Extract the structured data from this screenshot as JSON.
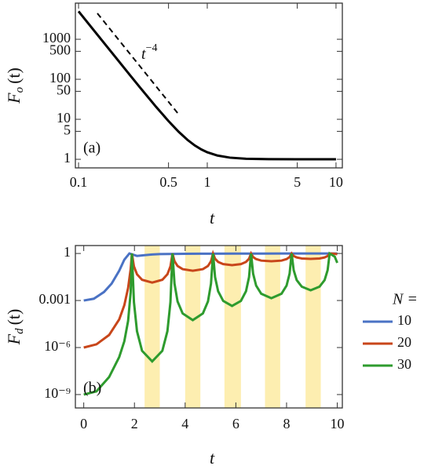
{
  "chart_data": [
    {
      "type": "line",
      "panel_label": "(a)",
      "xlabel": "t",
      "ylabel": {
        "text": "F",
        "sub": "o",
        "arg": "(t)"
      },
      "annotation": {
        "text": "t",
        "superscript": "−4"
      },
      "xscale": "log",
      "yscale": "log",
      "xlim": [
        0.0945,
        11.2
      ],
      "ylim": [
        0.61,
        8000
      ],
      "xticks": [
        0.1,
        0.5,
        1,
        5,
        10
      ],
      "yticks": [
        1,
        5,
        10,
        50,
        100,
        500,
        1000
      ],
      "series": [
        {
          "color": "#000000",
          "style": "solid",
          "x": [
            0.1,
            0.12,
            0.15,
            0.2,
            0.25,
            0.3,
            0.4,
            0.5,
            0.6,
            0.7,
            0.8,
            0.9,
            1,
            1.2,
            1.5,
            2,
            3,
            5,
            7,
            10
          ],
          "values": [
            5001,
            2412,
            989,
            314,
            129,
            62.7,
            20.5,
            9,
            4.86,
            3.08,
            2.22,
            1.76,
            1.5,
            1.24,
            1.1,
            1.03,
            1.01,
            1,
            1,
            1
          ]
        },
        {
          "color": "#000000",
          "style": "dashed",
          "x": [
            0.14,
            0.6
          ],
          "values": [
            4460,
            13.2
          ]
        }
      ]
    },
    {
      "type": "line",
      "panel_label": "(b)",
      "xlabel": "t",
      "ylabel": {
        "text": "F",
        "sub": "d",
        "arg": "(t)"
      },
      "xscale": "linear",
      "yscale": "log",
      "xlim": [
        -0.33,
        10.2
      ],
      "ylim": [
        1.4e-10,
        3.2
      ],
      "xticks": [
        0,
        2,
        4,
        6,
        8,
        10
      ],
      "yticks": [
        1,
        0.001,
        {
          "value": 1e-06,
          "label": "10⁻⁶"
        },
        {
          "value": 1e-09,
          "label": "10⁻⁹"
        }
      ],
      "bands": [
        [
          2.4,
          3.0
        ],
        [
          4.0,
          4.6
        ],
        [
          5.55,
          6.2
        ],
        [
          7.15,
          7.75
        ],
        [
          8.75,
          9.35
        ]
      ],
      "band_color": "#fdeeb0",
      "legend_title": "N =",
      "legend": "right",
      "series": [
        {
          "name": "10",
          "color": "#4a72c4",
          "x": [
            0,
            0.4,
            0.8,
            1.1,
            1.4,
            1.6,
            1.8,
            2.1,
            2.4,
            2.7,
            3.0,
            4,
            5,
            6,
            7,
            8,
            9,
            10
          ],
          "values": [
            0.001,
            0.0013,
            0.0035,
            0.012,
            0.08,
            0.4,
            1,
            0.7,
            0.78,
            0.86,
            0.92,
            0.96,
            0.97,
            0.98,
            0.98,
            0.99,
            0.99,
            0.99
          ]
        },
        {
          "name": "20",
          "color": "#c8461a",
          "x": [
            0,
            0.5,
            1.0,
            1.4,
            1.6,
            1.75,
            1.85,
            1.9,
            1.98,
            2.1,
            2.3,
            2.7,
            3.1,
            3.3,
            3.42,
            3.5,
            3.58,
            3.7,
            3.9,
            4.3,
            4.7,
            4.9,
            5.02,
            5.1,
            5.18,
            5.3,
            5.5,
            5.85,
            6.2,
            6.4,
            6.52,
            6.6,
            6.68,
            6.8,
            7.0,
            7.4,
            7.8,
            8.0,
            8.12,
            8.2,
            8.28,
            8.4,
            8.6,
            8.95,
            9.3,
            9.5,
            9.62,
            9.7,
            9.9,
            10
          ],
          "values": [
            1e-06,
            1.6e-06,
            6.3e-06,
            6.3e-05,
            0.0005,
            0.0063,
            0.1,
            1,
            0.15,
            0.047,
            0.021,
            0.014,
            0.021,
            0.047,
            0.15,
            1,
            0.32,
            0.16,
            0.1,
            0.079,
            0.1,
            0.16,
            0.32,
            1,
            0.46,
            0.29,
            0.21,
            0.18,
            0.21,
            0.29,
            0.46,
            1,
            0.59,
            0.44,
            0.35,
            0.32,
            0.35,
            0.44,
            0.59,
            1,
            0.69,
            0.56,
            0.48,
            0.45,
            0.48,
            0.56,
            0.69,
            1,
            0.95,
            0.9
          ]
        },
        {
          "name": "30",
          "color": "#2e9b2e",
          "x": [
            0,
            0.5,
            1.0,
            1.4,
            1.6,
            1.75,
            1.85,
            1.9,
            1.98,
            2.1,
            2.3,
            2.7,
            3.1,
            3.3,
            3.42,
            3.5,
            3.58,
            3.7,
            3.9,
            4.3,
            4.7,
            4.9,
            5.02,
            5.1,
            5.18,
            5.3,
            5.5,
            5.85,
            6.2,
            6.4,
            6.52,
            6.6,
            6.68,
            6.8,
            7.0,
            7.4,
            7.8,
            8.0,
            8.12,
            8.2,
            8.28,
            8.4,
            8.6,
            8.95,
            9.3,
            9.5,
            9.62,
            9.7,
            9.9,
            10
          ],
          "values": [
            1e-09,
            1.6e-09,
            1.3e-08,
            2.5e-07,
            2.5e-06,
            5e-05,
            0.0032,
            1,
            0.00079,
            1.1e-05,
            6.2e-07,
            1.3e-07,
            6.2e-07,
            1.1e-05,
            0.00079,
            1,
            0.012,
            0.00087,
            0.00015,
            5.6e-05,
            0.00015,
            0.00087,
            0.012,
            1,
            0.031,
            0.0039,
            0.00095,
            0.00045,
            0.00095,
            0.0039,
            0.031,
            1,
            0.052,
            0.0089,
            0.0027,
            0.0014,
            0.0027,
            0.0089,
            0.052,
            1,
            0.087,
            0.02,
            0.0076,
            0.0045,
            0.0076,
            0.02,
            0.087,
            1,
            0.63,
            0.25
          ]
        }
      ]
    }
  ]
}
